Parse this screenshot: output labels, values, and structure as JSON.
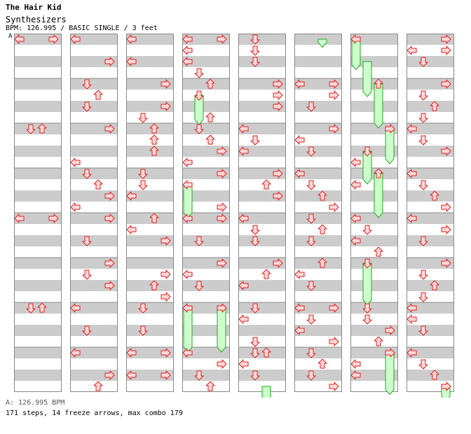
{
  "song": {
    "artist": "The Hair Kid",
    "title": "Synthesizers",
    "info": "BPM: 126.995 / BASIC SINGLE / 3 feet",
    "marker": "A"
  },
  "footer": {
    "bpm": "A: 126.995 BPM",
    "stats": "171 steps, 14 freeze arrows, max combo 179"
  },
  "colors": {
    "stripe": "#cccccc",
    "arrow_fill": "#ffd8d8",
    "arrow_stroke": "#e02020",
    "freeze_fill": "#ccffcc",
    "freeze_stroke": "#22aa22",
    "column_border": "#888888"
  },
  "chart_data": {
    "type": "step-chart",
    "columns": 8,
    "measures_per_column": 8,
    "lanes": [
      "left",
      "down",
      "up",
      "right"
    ],
    "columns_data": [
      {
        "arrows": [
          [
            0,
            0,
            0
          ],
          [
            0,
            0,
            3
          ],
          [
            2,
            0,
            1
          ],
          [
            2,
            0,
            2
          ],
          [
            4,
            0,
            0
          ],
          [
            4,
            0,
            3
          ],
          [
            6,
            0,
            1
          ],
          [
            6,
            0,
            2
          ]
        ],
        "freezes": []
      },
      {
        "arrows": [
          [
            0,
            0,
            0
          ],
          [
            0,
            2,
            3
          ],
          [
            1,
            0,
            1
          ],
          [
            1,
            1,
            2
          ],
          [
            1,
            2,
            1
          ],
          [
            2,
            0,
            3
          ],
          [
            2,
            3,
            0
          ],
          [
            3,
            0,
            1
          ],
          [
            3,
            1,
            2
          ],
          [
            3,
            2,
            3
          ],
          [
            3,
            3,
            0
          ],
          [
            4,
            0,
            3
          ],
          [
            4,
            2,
            1
          ],
          [
            5,
            0,
            3
          ],
          [
            5,
            1,
            1
          ],
          [
            5,
            2,
            3
          ],
          [
            6,
            0,
            0
          ],
          [
            6,
            2,
            1
          ],
          [
            7,
            0,
            0
          ],
          [
            7,
            2,
            3
          ],
          [
            7,
            3,
            2
          ]
        ],
        "freezes": []
      },
      {
        "arrows": [
          [
            0,
            0,
            0
          ],
          [
            0,
            2,
            0
          ],
          [
            1,
            0,
            3
          ],
          [
            1,
            2,
            3
          ],
          [
            1,
            3,
            1
          ],
          [
            2,
            0,
            2
          ],
          [
            2,
            1,
            2
          ],
          [
            2,
            2,
            2
          ],
          [
            3,
            0,
            1
          ],
          [
            3,
            1,
            1
          ],
          [
            3,
            2,
            0
          ],
          [
            4,
            0,
            2
          ],
          [
            4,
            1,
            0
          ],
          [
            4,
            2,
            3
          ],
          [
            5,
            1,
            3
          ],
          [
            5,
            2,
            2
          ],
          [
            5,
            3,
            3
          ],
          [
            6,
            0,
            1
          ],
          [
            6,
            2,
            1
          ],
          [
            7,
            0,
            0
          ],
          [
            7,
            0,
            3
          ],
          [
            7,
            2,
            0
          ],
          [
            7,
            2,
            3
          ]
        ],
        "freezes": []
      },
      {
        "arrows": [
          [
            0,
            0,
            0
          ],
          [
            0,
            0,
            3
          ],
          [
            0,
            1,
            0
          ],
          [
            0,
            2,
            0
          ],
          [
            0,
            3,
            1
          ],
          [
            1,
            0,
            2
          ],
          [
            1,
            1,
            1
          ],
          [
            1,
            3,
            2
          ],
          [
            2,
            0,
            1
          ],
          [
            2,
            1,
            2
          ],
          [
            2,
            2,
            3
          ],
          [
            2,
            3,
            0
          ],
          [
            3,
            0,
            3
          ],
          [
            3,
            1,
            0
          ],
          [
            3,
            3,
            3
          ],
          [
            4,
            0,
            0
          ],
          [
            4,
            0,
            3
          ],
          [
            4,
            2,
            1
          ],
          [
            5,
            0,
            3
          ],
          [
            5,
            1,
            0
          ],
          [
            5,
            2,
            1
          ],
          [
            6,
            0,
            0
          ],
          [
            6,
            0,
            3
          ],
          [
            7,
            0,
            0
          ],
          [
            7,
            1,
            3
          ],
          [
            7,
            2,
            1
          ],
          [
            7,
            3,
            2
          ]
        ],
        "freezes": [
          [
            1,
            1,
            1,
            2.5
          ],
          [
            3,
            1,
            0,
            2.8
          ],
          [
            6,
            0,
            0,
            3.8
          ],
          [
            6,
            0,
            3,
            3.8
          ]
        ]
      },
      {
        "arrows": [
          [
            0,
            0,
            1
          ],
          [
            0,
            1,
            1
          ],
          [
            0,
            2,
            1
          ],
          [
            1,
            0,
            3
          ],
          [
            1,
            1,
            3
          ],
          [
            1,
            2,
            3
          ],
          [
            2,
            0,
            0
          ],
          [
            2,
            1,
            1
          ],
          [
            2,
            2,
            0
          ],
          [
            3,
            0,
            3
          ],
          [
            3,
            1,
            2
          ],
          [
            3,
            2,
            3
          ],
          [
            4,
            0,
            0
          ],
          [
            4,
            1,
            1
          ],
          [
            4,
            2,
            1
          ],
          [
            5,
            0,
            3
          ],
          [
            5,
            1,
            2
          ],
          [
            5,
            2,
            0
          ],
          [
            6,
            0,
            1
          ],
          [
            6,
            1,
            0
          ],
          [
            6,
            3,
            1
          ],
          [
            7,
            0,
            1
          ],
          [
            7,
            0,
            2
          ],
          [
            7,
            1,
            0
          ],
          [
            7,
            2,
            1
          ]
        ],
        "freezes": [
          [
            7,
            3,
            2,
            1.5
          ]
        ]
      },
      {
        "arrows": [
          [
            1,
            0,
            0
          ],
          [
            1,
            0,
            3
          ],
          [
            1,
            1,
            3
          ],
          [
            1,
            2,
            1
          ],
          [
            2,
            0,
            3
          ],
          [
            2,
            1,
            0
          ],
          [
            2,
            2,
            1
          ],
          [
            3,
            0,
            0
          ],
          [
            3,
            1,
            1
          ],
          [
            3,
            2,
            2
          ],
          [
            3,
            3,
            3
          ],
          [
            4,
            0,
            1
          ],
          [
            4,
            1,
            2
          ],
          [
            4,
            2,
            1
          ],
          [
            5,
            0,
            2
          ],
          [
            5,
            1,
            0
          ],
          [
            5,
            2,
            1
          ],
          [
            6,
            0,
            0
          ],
          [
            6,
            0,
            3
          ],
          [
            6,
            1,
            1
          ],
          [
            6,
            2,
            0
          ],
          [
            6,
            3,
            3
          ],
          [
            7,
            0,
            1
          ],
          [
            7,
            1,
            2
          ],
          [
            7,
            2,
            1
          ],
          [
            7,
            3,
            3
          ]
        ],
        "freezes": [
          [
            0,
            0,
            2,
            0.6
          ]
        ]
      },
      {
        "arrows": [
          [
            0,
            0,
            0
          ],
          [
            1,
            0,
            2
          ],
          [
            2,
            0,
            3
          ],
          [
            2,
            2,
            1
          ],
          [
            2,
            3,
            0
          ],
          [
            3,
            0,
            2
          ],
          [
            3,
            1,
            0
          ],
          [
            4,
            0,
            0
          ],
          [
            4,
            1,
            1
          ],
          [
            4,
            2,
            0
          ],
          [
            4,
            3,
            2
          ],
          [
            5,
            0,
            1
          ],
          [
            6,
            0,
            1
          ],
          [
            6,
            1,
            1
          ],
          [
            6,
            2,
            3
          ],
          [
            6,
            3,
            2
          ],
          [
            7,
            0,
            3
          ],
          [
            7,
            1,
            0
          ],
          [
            7,
            2,
            0
          ]
        ],
        "freezes": [
          [
            0,
            0,
            0,
            2.6
          ],
          [
            0,
            2,
            1,
            3.0
          ],
          [
            1,
            0,
            2,
            3.8
          ],
          [
            2,
            0,
            3,
            3.0
          ],
          [
            2,
            2,
            1,
            2.8
          ],
          [
            3,
            0,
            2,
            3.8
          ],
          [
            5,
            0,
            1,
            3.6
          ],
          [
            7,
            0,
            3,
            3.6
          ]
        ]
      },
      {
        "arrows": [
          [
            0,
            0,
            3
          ],
          [
            0,
            1,
            0
          ],
          [
            0,
            1,
            3
          ],
          [
            0,
            2,
            1
          ],
          [
            1,
            0,
            3
          ],
          [
            1,
            1,
            1
          ],
          [
            1,
            2,
            2
          ],
          [
            1,
            3,
            1
          ],
          [
            2,
            0,
            0
          ],
          [
            2,
            1,
            1
          ],
          [
            2,
            2,
            3
          ],
          [
            3,
            0,
            0
          ],
          [
            3,
            1,
            1
          ],
          [
            3,
            2,
            2
          ],
          [
            3,
            3,
            3
          ],
          [
            4,
            0,
            0
          ],
          [
            4,
            1,
            3
          ],
          [
            4,
            2,
            1
          ],
          [
            5,
            0,
            3
          ],
          [
            5,
            1,
            1
          ],
          [
            5,
            2,
            2
          ],
          [
            5,
            3,
            1
          ],
          [
            6,
            0,
            0
          ],
          [
            6,
            1,
            0
          ],
          [
            6,
            2,
            1
          ],
          [
            7,
            0,
            0
          ],
          [
            7,
            1,
            1
          ],
          [
            7,
            2,
            2
          ],
          [
            7,
            3,
            3
          ]
        ],
        "freezes": [
          [
            7,
            3,
            3,
            1.2
          ]
        ]
      }
    ]
  }
}
